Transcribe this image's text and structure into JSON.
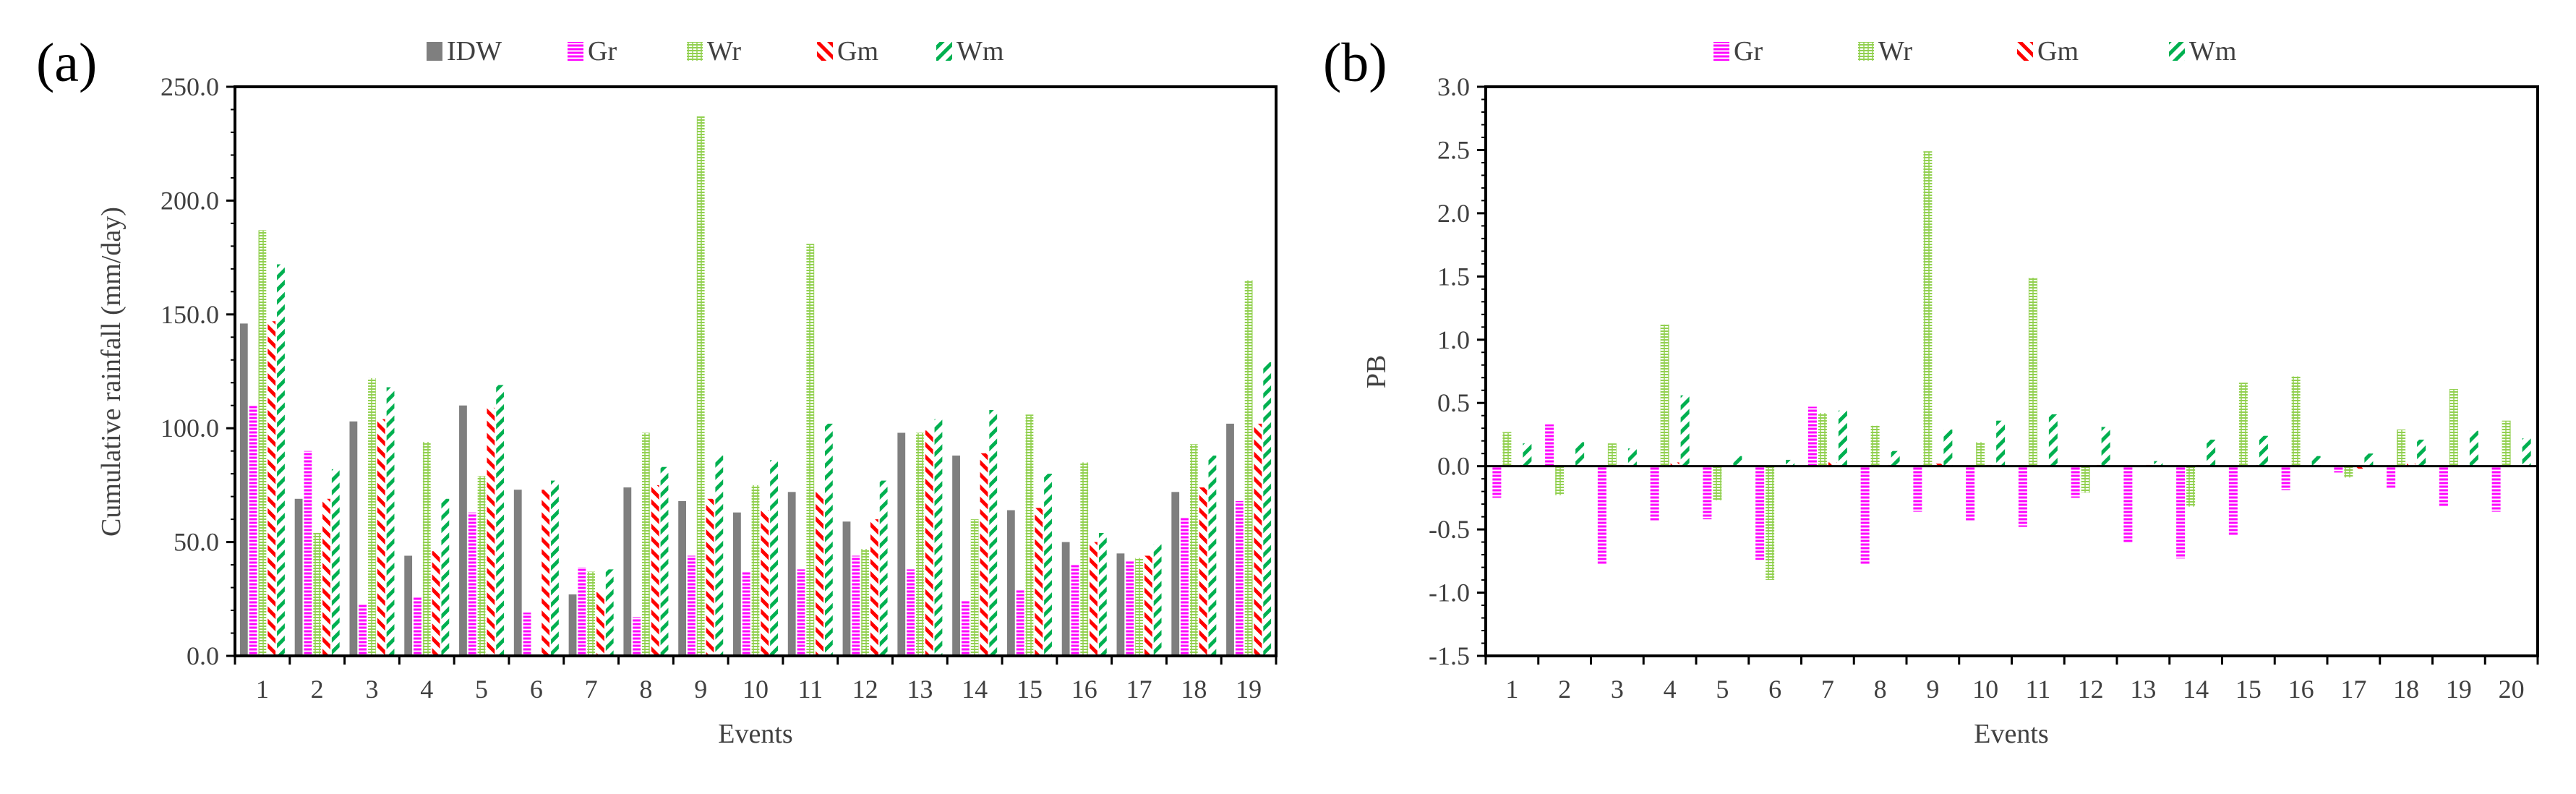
{
  "colors": {
    "IDW": "#7f7f7f",
    "Gr": "#ff00ff",
    "Wr": "#92d050",
    "Gm": "#ff0000",
    "Wm": "#00b050"
  },
  "chart_data": [
    {
      "panel_label": "(a)",
      "type": "bar",
      "title": "",
      "xlabel": "Events",
      "ylabel": "Cumulative rainfall (mm/day)",
      "ylim": [
        0,
        250
      ],
      "ytick_labels": [
        "0.0",
        "50.0",
        "100.0",
        "150.0",
        "200.0",
        "250.0"
      ],
      "categories": [
        "1",
        "2",
        "3",
        "4",
        "5",
        "6",
        "7",
        "8",
        "9",
        "10",
        "11",
        "12",
        "13",
        "14",
        "15",
        "16",
        "17",
        "18",
        "19"
      ],
      "legend_position": "top",
      "series": [
        {
          "name": "IDW",
          "values": [
            146,
            69,
            103,
            44,
            110,
            73,
            27,
            74,
            68,
            63,
            72,
            59,
            98,
            88,
            64,
            50,
            45,
            72,
            102
          ]
        },
        {
          "name": "Gr",
          "values": [
            110,
            90,
            23,
            26,
            63,
            19,
            39,
            17,
            44,
            37,
            38,
            44,
            38,
            24,
            29,
            40,
            42,
            61,
            68
          ]
        },
        {
          "name": "Wr",
          "values": [
            187,
            54,
            122,
            94,
            79,
            0,
            37,
            98,
            237,
            75,
            181,
            47,
            98,
            60,
            106,
            85,
            43,
            93,
            165
          ]
        },
        {
          "name": "Gm",
          "values": [
            147,
            69,
            104,
            46,
            109,
            73,
            28,
            75,
            69,
            64,
            72,
            60,
            99,
            89,
            65,
            50,
            44,
            74,
            102
          ]
        },
        {
          "name": "Wm",
          "values": [
            172,
            82,
            118,
            69,
            119,
            77,
            38,
            83,
            88,
            86,
            102,
            77,
            104,
            108,
            80,
            54,
            49,
            88,
            129
          ]
        }
      ]
    },
    {
      "panel_label": "(b)",
      "type": "bar",
      "title": "",
      "xlabel": "Events",
      "ylabel": "PB",
      "ylim": [
        -1.5,
        3.0
      ],
      "ytick_labels": [
        "-1.5",
        "-1.0",
        "-0.5",
        "0.0",
        "0.5",
        "1.0",
        "1.5",
        "2.0",
        "2.5",
        "3.0"
      ],
      "categories": [
        "1",
        "2",
        "3",
        "4",
        "5",
        "6",
        "7",
        "8",
        "9",
        "10",
        "11",
        "12",
        "13",
        "14",
        "15",
        "16",
        "17",
        "18",
        "19",
        "20"
      ],
      "legend_position": "top",
      "series": [
        {
          "name": "Gr",
          "values": [
            -0.25,
            0.33,
            -0.78,
            -0.43,
            -0.42,
            -0.74,
            0.47,
            -0.78,
            -0.36,
            -0.43,
            -0.48,
            -0.25,
            -0.61,
            -0.73,
            -0.55,
            -0.19,
            -0.05,
            -0.17,
            -0.32,
            -0.36
          ]
        },
        {
          "name": "Wr",
          "values": [
            0.27,
            -0.23,
            0.18,
            1.12,
            -0.27,
            -0.9,
            0.42,
            0.32,
            2.49,
            0.19,
            1.49,
            -0.21,
            0.0,
            -0.32,
            0.66,
            0.71,
            -0.09,
            0.29,
            0.61,
            0.36
          ]
        },
        {
          "name": "Gm",
          "values": [
            0.01,
            0.0,
            0.01,
            0.03,
            0.0,
            0.0,
            0.03,
            0.01,
            0.02,
            0.01,
            0.0,
            0.01,
            0.01,
            0.01,
            0.01,
            0.0,
            -0.02,
            0.02,
            0.0,
            0.0
          ]
        },
        {
          "name": "Wm",
          "values": [
            0.18,
            0.19,
            0.14,
            0.56,
            0.08,
            0.05,
            0.44,
            0.12,
            0.29,
            0.36,
            0.41,
            0.31,
            0.04,
            0.21,
            0.24,
            0.08,
            0.1,
            0.21,
            0.28,
            0.22
          ]
        }
      ]
    }
  ]
}
